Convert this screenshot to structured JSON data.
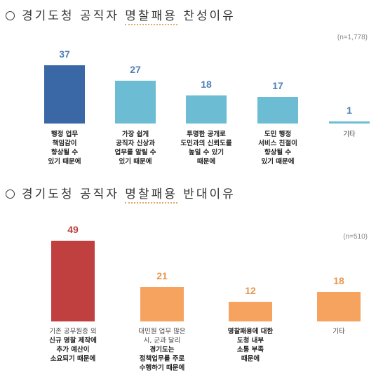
{
  "section1": {
    "title_prefix": "경기도청 공직자 ",
    "title_underlined": "명찰패용",
    "title_suffix": " 찬성이유",
    "n_note": "(n=1,778)"
  },
  "section2": {
    "title_prefix": "경기도청 공직자 ",
    "title_underlined": "명찰패용",
    "title_suffix": " 반대이유",
    "n_note": "(n=510)"
  },
  "colors": {
    "s1_first": "#3a67a5",
    "s1_rest": "#6cbdd3",
    "s1_value_text": "#4f7fb8",
    "s2_first": "#c0403f",
    "s2_rest": "#f5a35f",
    "s2_first_value_text": "#b8403f",
    "s2_rest_value_text": "#e7974f"
  },
  "chart_data": [
    {
      "type": "bar",
      "title": "경기도청 공직자 명찰패용 찬성이유",
      "categories": [
        [
          "행정 업무",
          "책임감이",
          "향상될 수",
          "있기 때문에"
        ],
        [
          "가장 쉽게",
          "공직자 신상과",
          "업무를 알릴 수",
          "있기 때문에"
        ],
        [
          "투명한 공개로",
          "도민과의 신뢰도를",
          "높일 수 있기",
          "때문에"
        ],
        [
          "도민 행정",
          "서비스 친절이",
          "향상될 수",
          "있기 때문에"
        ],
        [
          "기타"
        ]
      ],
      "values": [
        37,
        27,
        18,
        17,
        1
      ],
      "ylim": [
        0,
        37
      ]
    },
    {
      "type": "bar",
      "title": "경기도청 공직자 명찰패용 반대이유",
      "categories": [
        [
          "기존 공무원증 외",
          "신규 명찰 제작에",
          "추가 예산이",
          "소요되기 때문에"
        ],
        [
          "대민원 업무 많은",
          "시, 군과 달리",
          "경기도는",
          "정책업무를 주로",
          "수행하기 때문에"
        ],
        [
          "명찰패용에 대한",
          "도청 내부",
          "소통 부족",
          "때문에"
        ],
        [
          "기타"
        ]
      ],
      "values": [
        49,
        21,
        12,
        18
      ],
      "ylim": [
        0,
        49
      ]
    }
  ]
}
